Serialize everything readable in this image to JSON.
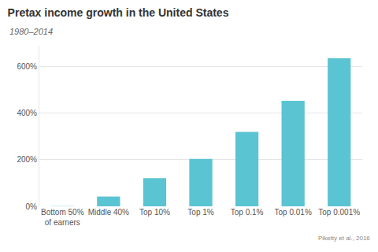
{
  "chart_data": {
    "type": "bar",
    "title": "Pretax income growth in the United States",
    "subtitle": "1980–2014",
    "source": "Piketty et al., 2016",
    "categories": [
      "Bottom 50% of earners",
      "Middle 40%",
      "Top 10%",
      "Top 1%",
      "Top 0.1%",
      "Top 0.01%",
      "Top 0.001%"
    ],
    "values": [
      1,
      42,
      121,
      204,
      320,
      453,
      636
    ],
    "color": "#5bc4d2",
    "ylim": [
      0,
      690
    ],
    "yticks": [
      {
        "value": 0,
        "label": "0%"
      },
      {
        "value": 200,
        "label": "200%"
      },
      {
        "value": 400,
        "label": "400%"
      },
      {
        "value": 600,
        "label": "600%"
      }
    ],
    "grid": true
  }
}
